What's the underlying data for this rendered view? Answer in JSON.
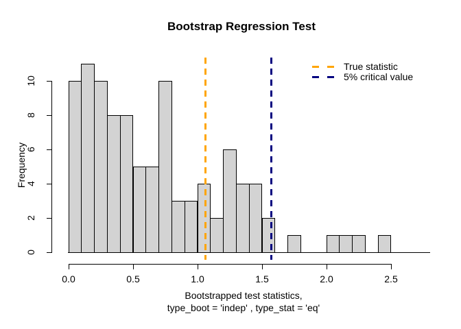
{
  "chart_data": {
    "type": "bar",
    "subtype": "histogram",
    "title": "Bootstrap Regression Test",
    "xlabel_line1": "Bootstrapped test statistics,",
    "xlabel_line2": "type_boot = 'indep' , type_stat = 'eq'",
    "ylabel": "Frequency",
    "bins": {
      "start": 0.0,
      "width": 0.1
    },
    "counts": [
      10,
      11,
      10,
      8,
      8,
      5,
      5,
      10,
      3,
      3,
      4,
      2,
      6,
      4,
      4,
      2,
      0,
      1,
      0,
      0,
      1,
      1,
      1,
      0,
      1
    ],
    "total_observations": 100,
    "x_tick_values": [
      0.0,
      0.5,
      1.0,
      1.5,
      2.0,
      2.5
    ],
    "x_tick_labels": [
      "0.0",
      "0.5",
      "1.0",
      "1.5",
      "2.0",
      "2.5"
    ],
    "y_tick_values": [
      0,
      2,
      4,
      6,
      8,
      10
    ],
    "y_tick_labels": [
      "0",
      "2",
      "4",
      "6",
      "8",
      "10"
    ],
    "xlim": [
      0.0,
      2.5
    ],
    "ylim": [
      0,
      11
    ],
    "grid": false,
    "legend_position": "top-right",
    "bar_fill_color": "#D3D3D3",
    "bar_border_color": "#000000",
    "vlines": [
      {
        "label": "True statistic",
        "value": 1.06,
        "color": "#FFA500",
        "style": "dashed"
      },
      {
        "label": "5% critical value",
        "value": 1.57,
        "color": "#000080",
        "style": "dashed"
      }
    ],
    "legend_entries": [
      {
        "label": "True statistic",
        "color": "#FFA500",
        "line_style": "dashed"
      },
      {
        "label": "5% critical value",
        "color": "#000080",
        "line_style": "dashed"
      }
    ]
  }
}
